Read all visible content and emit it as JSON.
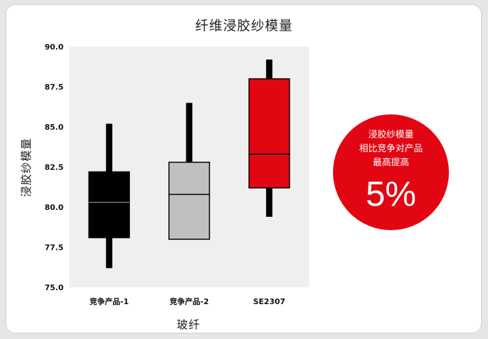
{
  "chart_data": {
    "type": "box",
    "title": "纤维浸胶纱模量",
    "xlabel": "玻纤",
    "ylabel": "浸胶纱模量",
    "ylim": [
      75.0,
      90.0
    ],
    "yticks": [
      "75.0",
      "77.5",
      "80.0",
      "82.5",
      "85.0",
      "87.5",
      "90.0"
    ],
    "categories": [
      "竞争产品-1",
      "竞争产品-2",
      "SE2307"
    ],
    "boxes": [
      {
        "category": "竞争产品-1",
        "min": 76.2,
        "q1": 78.1,
        "median": 80.3,
        "q3": 82.2,
        "max": 85.2,
        "color": "#000000"
      },
      {
        "category": "竞争产品-2",
        "min": 78.0,
        "q1": 78.0,
        "median": 80.8,
        "q3": 82.8,
        "max": 86.5,
        "color": "#c0c0c0"
      },
      {
        "category": "SE2307",
        "min": 79.4,
        "q1": 81.2,
        "median": 83.3,
        "q3": 88.0,
        "max": 89.2,
        "color": "#e20613"
      }
    ],
    "grid": false,
    "plot_background": "#efefef"
  },
  "callout": {
    "line1": "浸胶纱模量",
    "line2": "相比竞争对产品",
    "line3": "最高提高",
    "value": "5%",
    "color": "#e20613"
  }
}
